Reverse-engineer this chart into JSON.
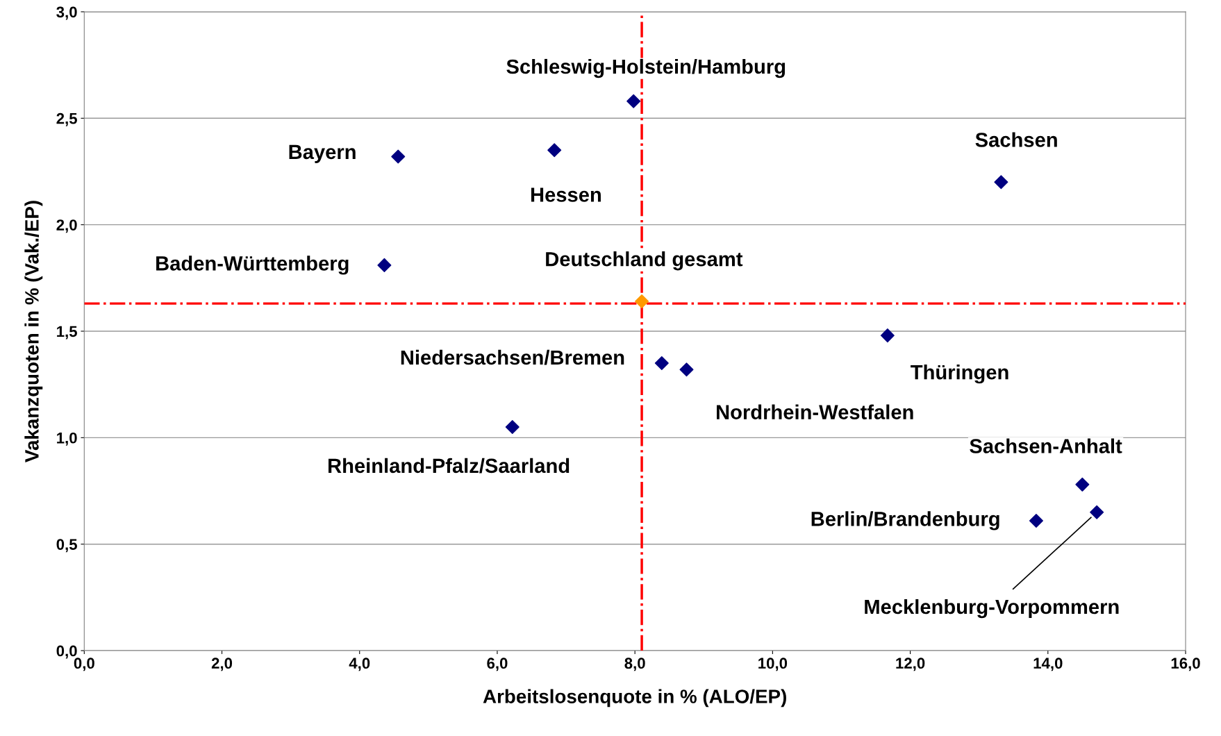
{
  "chart_data": {
    "type": "scatter",
    "xlabel": "Arbeitslosenquote in % (ALO/EP)",
    "ylabel": "Vakanzquoten in % (Vak./EP)",
    "xlim": [
      0,
      16
    ],
    "ylim": [
      0,
      3
    ],
    "xticks": [
      {
        "value": 0,
        "label": "0,0"
      },
      {
        "value": 2,
        "label": "2,0"
      },
      {
        "value": 4,
        "label": "4,0"
      },
      {
        "value": 6,
        "label": "6,0"
      },
      {
        "value": 8,
        "label": "8,0"
      },
      {
        "value": 10,
        "label": "10,0"
      },
      {
        "value": 12,
        "label": "12,0"
      },
      {
        "value": 14,
        "label": "14,0"
      },
      {
        "value": 16,
        "label": "16,0"
      }
    ],
    "yticks": [
      {
        "value": 0,
        "label": "0,0"
      },
      {
        "value": 0.5,
        "label": "0,5"
      },
      {
        "value": 1,
        "label": "1,0"
      },
      {
        "value": 1.5,
        "label": "1,5"
      },
      {
        "value": 2,
        "label": "2,0"
      },
      {
        "value": 2.5,
        "label": "2,5"
      },
      {
        "value": 3,
        "label": "3,0"
      }
    ],
    "grid": "y",
    "legend": false,
    "marker": "diamond",
    "series": [
      {
        "name": "Schleswig-Holstein/Hamburg",
        "color": "#000080",
        "x": [
          7.98
        ],
        "values": [
          2.58
        ]
      },
      {
        "name": "Hessen",
        "color": "#000080",
        "x": [
          6.83
        ],
        "values": [
          2.35
        ]
      },
      {
        "name": "Bayern",
        "color": "#000080",
        "x": [
          4.56
        ],
        "values": [
          2.32
        ]
      },
      {
        "name": "Sachsen",
        "color": "#000080",
        "x": [
          13.32
        ],
        "values": [
          2.2
        ]
      },
      {
        "name": "Baden-Württemberg",
        "color": "#000080",
        "x": [
          4.36
        ],
        "values": [
          1.81
        ]
      },
      {
        "name": "Deutschland gesamt",
        "color": "#ff9900",
        "x": [
          8.1
        ],
        "values": [
          1.64
        ]
      },
      {
        "name": "Thüringen",
        "color": "#000080",
        "x": [
          11.67
        ],
        "values": [
          1.48
        ]
      },
      {
        "name": "Niedersachsen/Bremen",
        "color": "#000080",
        "x": [
          8.39
        ],
        "values": [
          1.35
        ]
      },
      {
        "name": "Nordrhein-Westfalen",
        "color": "#000080",
        "x": [
          8.75
        ],
        "values": [
          1.32
        ]
      },
      {
        "name": "Rheinland-Pfalz/Saarland",
        "color": "#000080",
        "x": [
          6.22
        ],
        "values": [
          1.05
        ]
      },
      {
        "name": "Sachsen-Anhalt",
        "color": "#000080",
        "x": [
          14.5
        ],
        "values": [
          0.78
        ]
      },
      {
        "name": "Berlin/Brandenburg",
        "color": "#000080",
        "x": [
          13.83
        ],
        "values": [
          0.61
        ]
      },
      {
        "name": "Mecklenburg-Vorpommern",
        "color": "#000080",
        "x": [
          14.71
        ],
        "values": [
          0.65
        ]
      }
    ],
    "ref_lines": [
      {
        "axis": "x",
        "value": 8.1,
        "color": "#ff0000",
        "line_style": "dashdot"
      },
      {
        "axis": "y",
        "value": 1.63,
        "color": "#ff0000",
        "line_style": "dashdot"
      }
    ]
  }
}
